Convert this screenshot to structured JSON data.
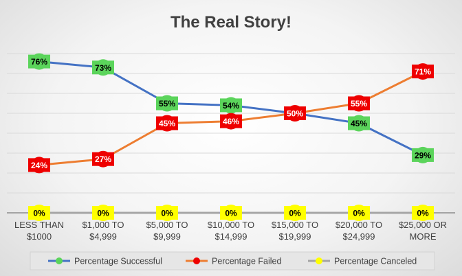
{
  "chart_data": {
    "type": "line",
    "title": "The Real Story!",
    "xlabel": "",
    "ylabel": "",
    "ylim": [
      0,
      100
    ],
    "grid": true,
    "legend_position": "bottom",
    "categories": [
      [
        "LESS THAN",
        "$1000"
      ],
      [
        "$1,000 TO",
        "$4,999"
      ],
      [
        "$5,000 TO",
        "$9,999"
      ],
      [
        "$10,000 TO",
        "$14,999"
      ],
      [
        "$15,000 TO",
        "$19,999"
      ],
      [
        "$20,000 TO",
        "$24,999"
      ],
      [
        "$25,000 OR",
        "MORE"
      ]
    ],
    "series": [
      {
        "name": "Percentage Successful",
        "values": [
          76,
          73,
          55,
          54,
          50,
          45,
          29
        ],
        "labels": [
          "76%",
          "73%",
          "55%",
          "54%",
          "",
          "45%",
          "29%"
        ],
        "line_color": "#4472C4",
        "marker_color": "#5BD45B",
        "marker_shape": "square",
        "label_color": "#000000"
      },
      {
        "name": "Percentage Failed",
        "values": [
          24,
          27,
          45,
          46,
          50,
          55,
          71
        ],
        "labels": [
          "24%",
          "27%",
          "45%",
          "46%",
          "50%",
          "55%",
          "71%"
        ],
        "line_color": "#ED7D31",
        "marker_color": "#EE0000",
        "marker_shape": "square",
        "label_color": "#ffffff"
      },
      {
        "name": "Percentage Canceled",
        "values": [
          0,
          0,
          0,
          0,
          0,
          0,
          0
        ],
        "labels": [
          "0%",
          "0%",
          "0%",
          "0%",
          "0%",
          "0%",
          "0%"
        ],
        "line_color": "#A5A5A5",
        "marker_color": "#FFFF00",
        "marker_shape": "square",
        "label_color": "#000000"
      }
    ]
  }
}
